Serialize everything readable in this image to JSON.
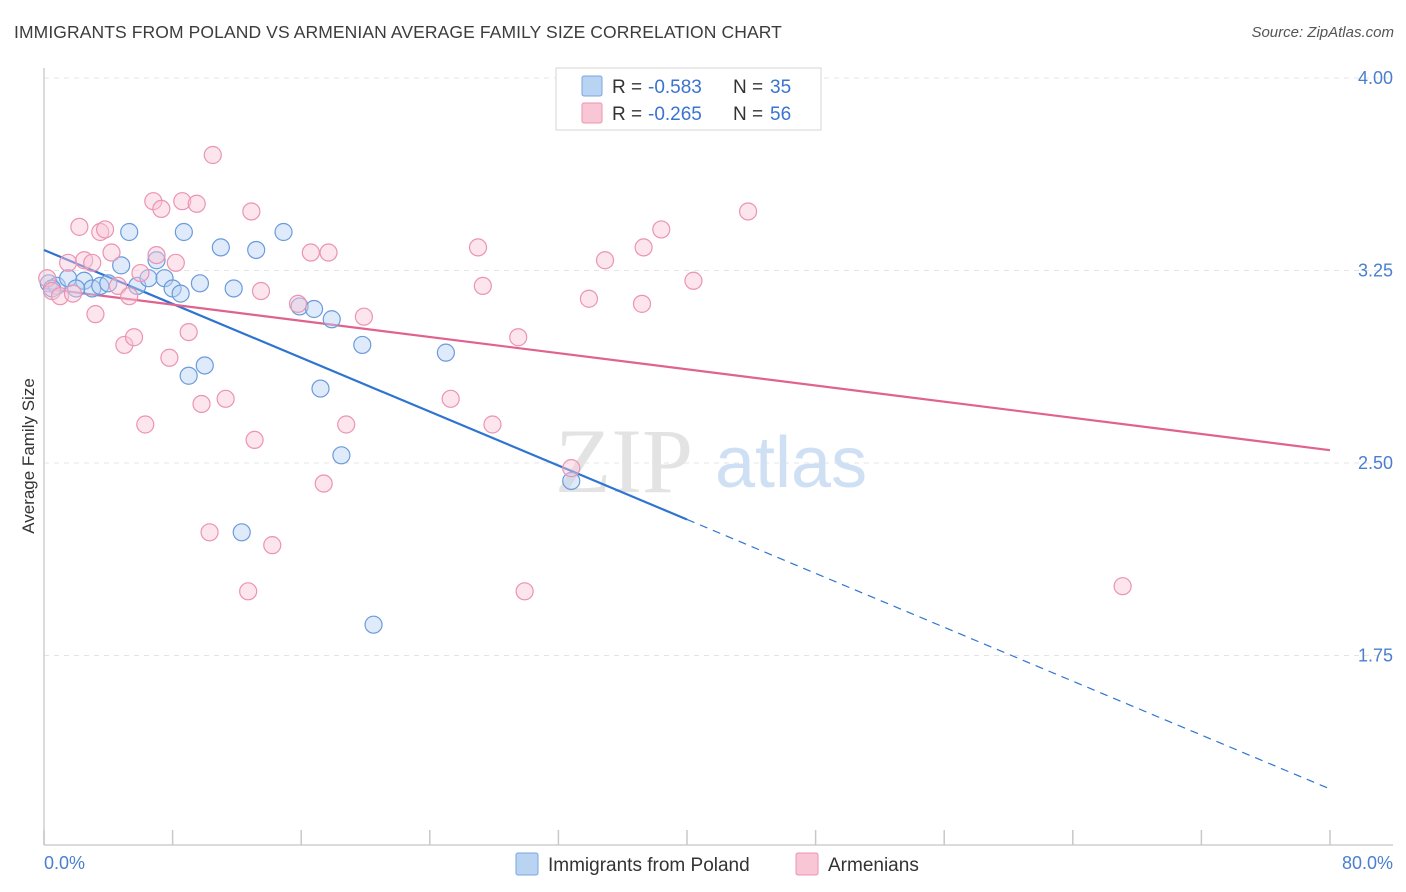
{
  "header": {
    "title": "IMMIGRANTS FROM POLAND VS ARMENIAN AVERAGE FAMILY SIZE CORRELATION CHART",
    "source": "Source: ZipAtlas.com"
  },
  "watermark": {
    "part1": "ZIP",
    "part2": "atlas"
  },
  "legend_box": {
    "rows": [
      {
        "r_label": "R = ",
        "r_value": "-0.583",
        "n_label": "N = ",
        "n_value": "35",
        "color": "#a9c8f0"
      },
      {
        "r_label": "R = ",
        "r_value": "-0.265",
        "n_label": "N = ",
        "n_value": "56",
        "color": "#f7b8cc"
      }
    ]
  },
  "chart_data": {
    "type": "scatter",
    "title": "IMMIGRANTS FROM POLAND VS ARMENIAN AVERAGE FAMILY SIZE CORRELATION CHART",
    "xlabel": "",
    "ylabel": "Average Family Size",
    "xlim": [
      0,
      80
    ],
    "ylim": [
      1.12,
      4.18
    ],
    "x_tick_labels": [
      "0.0%",
      "80.0%"
    ],
    "y_ticks": [
      4.0,
      3.25,
      2.5,
      1.75
    ],
    "y_tick_labels": [
      "4.00",
      "3.25",
      "2.50",
      "1.75"
    ],
    "grid": true,
    "legend_position": "bottom-center",
    "series": [
      {
        "name": "Immigrants from Poland",
        "color": "#5b8fd8",
        "fill": "#b9d3f3",
        "points": [
          [
            0.3,
            3.2
          ],
          [
            0.8,
            3.19
          ],
          [
            1.5,
            3.22
          ],
          [
            2.5,
            3.21
          ],
          [
            3.0,
            3.18
          ],
          [
            3.5,
            3.19
          ],
          [
            4.0,
            3.2
          ],
          [
            4.8,
            3.27
          ],
          [
            5.3,
            3.4
          ],
          [
            5.8,
            3.19
          ],
          [
            6.5,
            3.22
          ],
          [
            7.0,
            3.29
          ],
          [
            7.5,
            3.22
          ],
          [
            8.0,
            3.18
          ],
          [
            8.5,
            3.16
          ],
          [
            8.7,
            3.4
          ],
          [
            9.0,
            2.84
          ],
          [
            9.7,
            3.2
          ],
          [
            10.0,
            2.88
          ],
          [
            11.0,
            3.34
          ],
          [
            11.8,
            3.18
          ],
          [
            12.3,
            2.23
          ],
          [
            13.2,
            3.33
          ],
          [
            14.9,
            3.4
          ],
          [
            15.9,
            3.11
          ],
          [
            16.8,
            3.1
          ],
          [
            17.2,
            2.79
          ],
          [
            17.9,
            3.06
          ],
          [
            18.5,
            2.53
          ],
          [
            19.8,
            2.96
          ],
          [
            20.5,
            1.87
          ],
          [
            25.0,
            2.93
          ],
          [
            32.8,
            2.43
          ],
          [
            0.5,
            3.18
          ],
          [
            2.0,
            3.18
          ]
        ]
      },
      {
        "name": "Armenians",
        "color": "#e87fa3",
        "fill": "#f9c6d6",
        "points": [
          [
            0.2,
            3.22
          ],
          [
            0.5,
            3.17
          ],
          [
            1.0,
            3.15
          ],
          [
            1.5,
            3.28
          ],
          [
            1.8,
            3.16
          ],
          [
            2.2,
            3.42
          ],
          [
            2.5,
            3.29
          ],
          [
            3.0,
            3.28
          ],
          [
            3.2,
            3.08
          ],
          [
            3.5,
            3.4
          ],
          [
            3.8,
            3.41
          ],
          [
            4.2,
            3.32
          ],
          [
            4.6,
            3.19
          ],
          [
            5.0,
            2.96
          ],
          [
            5.3,
            3.15
          ],
          [
            5.6,
            2.99
          ],
          [
            6.0,
            3.24
          ],
          [
            6.3,
            2.65
          ],
          [
            6.8,
            3.52
          ],
          [
            7.0,
            3.31
          ],
          [
            7.3,
            3.49
          ],
          [
            7.8,
            2.91
          ],
          [
            8.2,
            3.28
          ],
          [
            8.6,
            3.52
          ],
          [
            9.0,
            3.01
          ],
          [
            9.5,
            3.51
          ],
          [
            9.8,
            2.73
          ],
          [
            10.3,
            2.23
          ],
          [
            10.5,
            3.7
          ],
          [
            11.3,
            2.75
          ],
          [
            12.7,
            2.0
          ],
          [
            12.9,
            3.48
          ],
          [
            13.1,
            2.59
          ],
          [
            13.5,
            3.17
          ],
          [
            14.2,
            2.18
          ],
          [
            15.8,
            3.12
          ],
          [
            16.6,
            3.32
          ],
          [
            17.4,
            2.42
          ],
          [
            17.7,
            3.32
          ],
          [
            18.8,
            2.65
          ],
          [
            19.9,
            3.07
          ],
          [
            25.3,
            2.75
          ],
          [
            27.0,
            3.34
          ],
          [
            27.3,
            3.19
          ],
          [
            27.9,
            2.65
          ],
          [
            29.5,
            2.99
          ],
          [
            29.9,
            2.0
          ],
          [
            32.8,
            2.48
          ],
          [
            33.9,
            3.14
          ],
          [
            34.9,
            3.29
          ],
          [
            37.2,
            3.12
          ],
          [
            37.3,
            3.34
          ],
          [
            38.4,
            3.41
          ],
          [
            40.4,
            3.21
          ],
          [
            43.8,
            3.48
          ],
          [
            67.1,
            2.02
          ]
        ]
      }
    ],
    "trend_lines": [
      {
        "series": "Immigrants from Poland",
        "solid": [
          [
            0,
            3.33
          ],
          [
            40,
            2.28
          ]
        ],
        "dashed": [
          [
            40,
            2.28
          ],
          [
            80,
            1.23
          ]
        ]
      },
      {
        "series": "Armenians",
        "solid": [
          [
            0,
            3.18
          ],
          [
            80,
            2.55
          ]
        ]
      }
    ]
  }
}
